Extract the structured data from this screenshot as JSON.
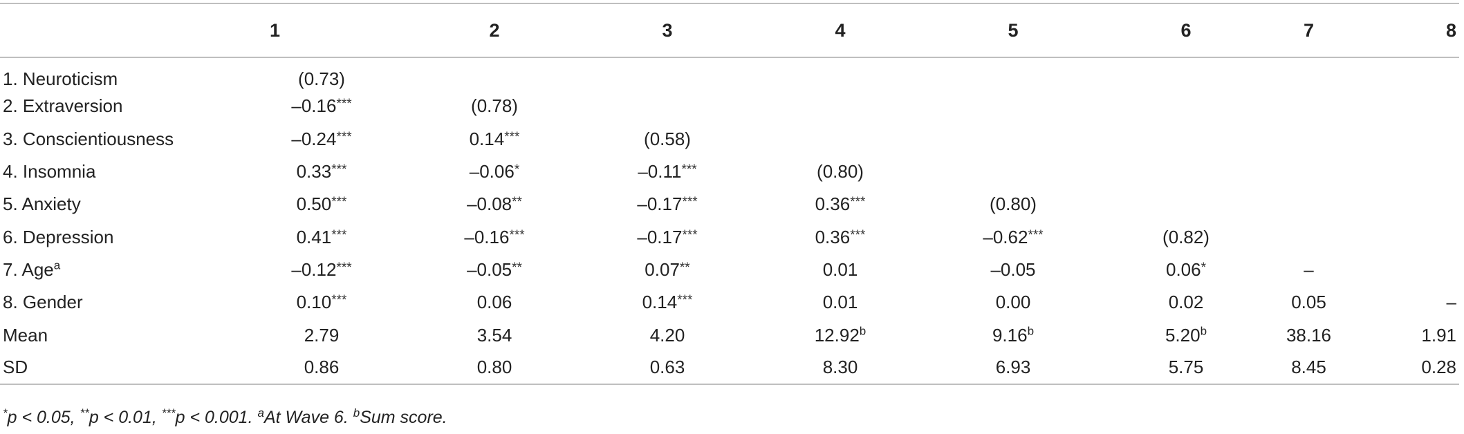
{
  "table": {
    "columns": [
      "",
      "1",
      "2",
      "3",
      "4",
      "5",
      "6",
      "7",
      "8"
    ],
    "rows": [
      {
        "label": "1. Neuroticism",
        "label_sup": "",
        "cells": [
          {
            "v": "(0.73)",
            "s": ""
          },
          {
            "v": "",
            "s": ""
          },
          {
            "v": "",
            "s": ""
          },
          {
            "v": "",
            "s": ""
          },
          {
            "v": "",
            "s": ""
          },
          {
            "v": "",
            "s": ""
          },
          {
            "v": "",
            "s": ""
          },
          {
            "v": "",
            "s": ""
          }
        ]
      },
      {
        "label": "2. Extraversion",
        "label_sup": "",
        "cells": [
          {
            "v": "–0.16",
            "s": "***"
          },
          {
            "v": "(0.78)",
            "s": ""
          },
          {
            "v": "",
            "s": ""
          },
          {
            "v": "",
            "s": ""
          },
          {
            "v": "",
            "s": ""
          },
          {
            "v": "",
            "s": ""
          },
          {
            "v": "",
            "s": ""
          },
          {
            "v": "",
            "s": ""
          }
        ]
      },
      {
        "label": "3. Conscientiousness",
        "label_sup": "",
        "cells": [
          {
            "v": "–0.24",
            "s": "***"
          },
          {
            "v": "0.14",
            "s": "***"
          },
          {
            "v": "(0.58)",
            "s": ""
          },
          {
            "v": "",
            "s": ""
          },
          {
            "v": "",
            "s": ""
          },
          {
            "v": "",
            "s": ""
          },
          {
            "v": "",
            "s": ""
          },
          {
            "v": "",
            "s": ""
          }
        ]
      },
      {
        "label": "4. Insomnia",
        "label_sup": "",
        "cells": [
          {
            "v": "0.33",
            "s": "***"
          },
          {
            "v": "–0.06",
            "s": "*"
          },
          {
            "v": "–0.11",
            "s": "***"
          },
          {
            "v": "(0.80)",
            "s": ""
          },
          {
            "v": "",
            "s": ""
          },
          {
            "v": "",
            "s": ""
          },
          {
            "v": "",
            "s": ""
          },
          {
            "v": "",
            "s": ""
          }
        ]
      },
      {
        "label": "5. Anxiety",
        "label_sup": "",
        "cells": [
          {
            "v": "0.50",
            "s": "***"
          },
          {
            "v": "–0.08",
            "s": "**"
          },
          {
            "v": "–0.17",
            "s": "***"
          },
          {
            "v": "0.36",
            "s": "***"
          },
          {
            "v": "(0.80)",
            "s": ""
          },
          {
            "v": "",
            "s": ""
          },
          {
            "v": "",
            "s": ""
          },
          {
            "v": "",
            "s": ""
          }
        ]
      },
      {
        "label": "6. Depression",
        "label_sup": "",
        "cells": [
          {
            "v": "0.41",
            "s": "***"
          },
          {
            "v": "–0.16",
            "s": "***"
          },
          {
            "v": "–0.17",
            "s": "***"
          },
          {
            "v": "0.36",
            "s": "***"
          },
          {
            "v": "–0.62",
            "s": "***"
          },
          {
            "v": "(0.82)",
            "s": ""
          },
          {
            "v": "",
            "s": ""
          },
          {
            "v": "",
            "s": ""
          }
        ]
      },
      {
        "label": "7. Age",
        "label_sup": "a",
        "cells": [
          {
            "v": "–0.12",
            "s": "***"
          },
          {
            "v": "–0.05",
            "s": "**"
          },
          {
            "v": "0.07",
            "s": "**"
          },
          {
            "v": "0.01",
            "s": ""
          },
          {
            "v": "–0.05",
            "s": ""
          },
          {
            "v": "0.06",
            "s": "*"
          },
          {
            "v": "–",
            "s": ""
          },
          {
            "v": "",
            "s": ""
          }
        ]
      },
      {
        "label": "8. Gender",
        "label_sup": "",
        "cells": [
          {
            "v": "0.10",
            "s": "***"
          },
          {
            "v": "0.06",
            "s": ""
          },
          {
            "v": "0.14",
            "s": "***"
          },
          {
            "v": "0.01",
            "s": ""
          },
          {
            "v": "0.00",
            "s": ""
          },
          {
            "v": "0.02",
            "s": ""
          },
          {
            "v": "0.05",
            "s": ""
          },
          {
            "v": "–",
            "s": ""
          }
        ]
      },
      {
        "label": "Mean",
        "label_sup": "",
        "cells": [
          {
            "v": "2.79",
            "s": ""
          },
          {
            "v": "3.54",
            "s": ""
          },
          {
            "v": "4.20",
            "s": ""
          },
          {
            "v": "12.92",
            "s": "b"
          },
          {
            "v": "9.16",
            "s": "b"
          },
          {
            "v": "5.20",
            "s": "b"
          },
          {
            "v": "38.16",
            "s": ""
          },
          {
            "v": "1.91",
            "s": ""
          }
        ]
      },
      {
        "label": "SD",
        "label_sup": "",
        "cells": [
          {
            "v": "0.86",
            "s": ""
          },
          {
            "v": "0.80",
            "s": ""
          },
          {
            "v": "0.63",
            "s": ""
          },
          {
            "v": "8.30",
            "s": ""
          },
          {
            "v": "6.93",
            "s": ""
          },
          {
            "v": "5.75",
            "s": ""
          },
          {
            "v": "8.45",
            "s": ""
          },
          {
            "v": "0.28",
            "s": ""
          }
        ]
      }
    ]
  },
  "note": {
    "s1_sup": "*",
    "s1": "p < 0.05, ",
    "s2_sup": "**",
    "s2": "p < 0.01, ",
    "s3_sup": "***",
    "s3": "p < 0.001. ",
    "s4_sup": "a",
    "s4": "At Wave 6. ",
    "s5_sup": "b",
    "s5": "Sum score."
  }
}
